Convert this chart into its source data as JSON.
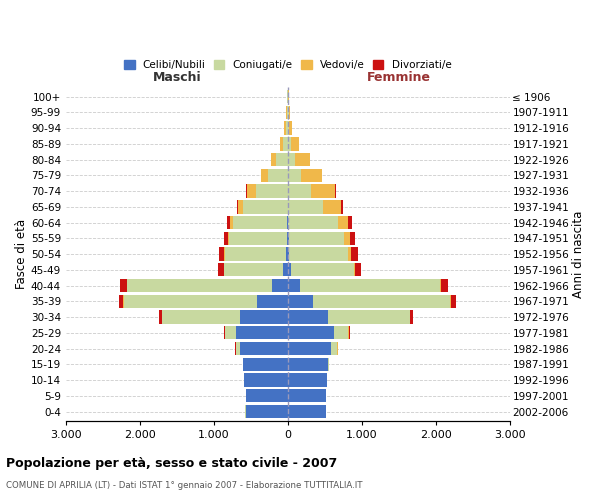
{
  "age_groups": [
    "0-4",
    "5-9",
    "10-14",
    "15-19",
    "20-24",
    "25-29",
    "30-34",
    "35-39",
    "40-44",
    "45-49",
    "50-54",
    "55-59",
    "60-64",
    "65-69",
    "70-74",
    "75-79",
    "80-84",
    "85-89",
    "90-94",
    "95-99",
    "100+"
  ],
  "birth_years": [
    "2002-2006",
    "1997-2001",
    "1992-1996",
    "1987-1991",
    "1982-1986",
    "1977-1981",
    "1972-1976",
    "1967-1971",
    "1962-1966",
    "1957-1961",
    "1952-1956",
    "1947-1951",
    "1942-1946",
    "1937-1941",
    "1932-1936",
    "1927-1931",
    "1922-1926",
    "1917-1921",
    "1912-1916",
    "1907-1911",
    "≤ 1906"
  ],
  "colors": {
    "celibe": "#4472C4",
    "coniugato": "#C8D9A0",
    "vedovo": "#F0B84A",
    "divorziato": "#CC1111"
  },
  "male": {
    "celibe": [
      570,
      560,
      590,
      600,
      650,
      700,
      650,
      420,
      220,
      60,
      30,
      15,
      10,
      0,
      0,
      0,
      0,
      0,
      0,
      0,
      0
    ],
    "coniugato": [
      5,
      5,
      5,
      10,
      50,
      150,
      1050,
      1800,
      1950,
      800,
      820,
      780,
      730,
      600,
      430,
      270,
      160,
      70,
      25,
      10,
      5
    ],
    "vedovo": [
      0,
      0,
      0,
      0,
      5,
      5,
      5,
      5,
      5,
      5,
      10,
      20,
      40,
      70,
      120,
      90,
      70,
      40,
      20,
      10,
      5
    ],
    "divorziato": [
      0,
      0,
      0,
      0,
      5,
      5,
      30,
      60,
      90,
      80,
      70,
      50,
      40,
      20,
      10,
      5,
      0,
      0,
      0,
      0,
      0
    ]
  },
  "female": {
    "nubile": [
      510,
      510,
      530,
      540,
      590,
      620,
      550,
      340,
      160,
      40,
      20,
      10,
      0,
      0,
      0,
      0,
      0,
      0,
      0,
      0,
      0
    ],
    "coniugata": [
      5,
      5,
      5,
      20,
      80,
      200,
      1100,
      1850,
      1900,
      850,
      800,
      750,
      680,
      480,
      320,
      180,
      100,
      50,
      20,
      10,
      5
    ],
    "vedova": [
      0,
      0,
      0,
      0,
      5,
      5,
      5,
      10,
      10,
      20,
      40,
      80,
      140,
      240,
      320,
      280,
      200,
      100,
      40,
      15,
      5
    ],
    "divorziata": [
      0,
      0,
      0,
      0,
      5,
      10,
      40,
      80,
      100,
      80,
      90,
      70,
      50,
      20,
      10,
      5,
      0,
      0,
      0,
      0,
      0
    ]
  },
  "xlim": 3000,
  "xtick_positions": [
    -3000,
    -2000,
    -1000,
    0,
    1000,
    2000,
    3000
  ],
  "xtick_labels": [
    "3.000",
    "2.000",
    "1.000",
    "0",
    "1.000",
    "2.000",
    "3.000"
  ],
  "title": "Popolazione per età, sesso e stato civile - 2007",
  "subtitle": "COMUNE DI APRILIA (LT) - Dati ISTAT 1° gennaio 2007 - Elaborazione TUTTITALIA.IT",
  "legend_labels": [
    "Celibi/Nubili",
    "Coniugati/e",
    "Vedovi/e",
    "Divorziati/e"
  ],
  "ylabel_left": "Fasce di età",
  "ylabel_right": "Anni di nascita",
  "maschi_label": "Maschi",
  "femmine_label": "Femmine",
  "maschi_color": "#333333",
  "femmine_color": "#993333"
}
